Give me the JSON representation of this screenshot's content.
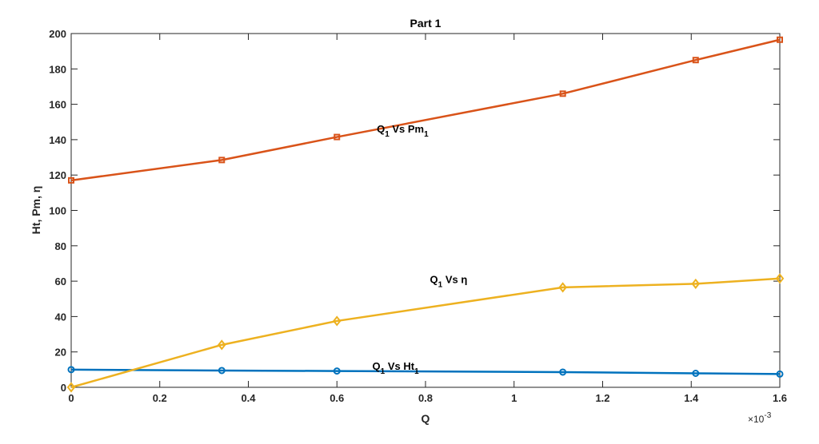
{
  "chart_data": {
    "type": "line",
    "title": "Part 1",
    "xlabel": "Q",
    "ylabel": "Ht, Pm, η",
    "x_exponent_label": "×10",
    "x_exponent_power": "-3",
    "xlim": [
      0,
      1.6
    ],
    "ylim": [
      0,
      200
    ],
    "x_ticks": [
      "0",
      "0.2",
      "0.4",
      "0.6",
      "0.8",
      "1",
      "1.2",
      "1.4",
      "1.6"
    ],
    "y_ticks": [
      "0",
      "20",
      "40",
      "60",
      "80",
      "100",
      "120",
      "140",
      "160",
      "180",
      "200"
    ],
    "x": [
      0,
      0.34,
      0.6,
      1.11,
      1.41,
      1.6
    ],
    "series": [
      {
        "key": "ht",
        "values": [
          10,
          9.5,
          9.2,
          8.6,
          7.9,
          7.5
        ],
        "color": "#0072BD",
        "marker": "circle",
        "annotation": {
          "main": "Q",
          "sub": "1",
          "rest": " Vs Ht",
          "sub2": "1",
          "anchor_x": 0.68,
          "anchor_y": 10
        }
      },
      {
        "key": "pm",
        "values": [
          117,
          128.5,
          141.5,
          166,
          185,
          196.5
        ],
        "color": "#D95319",
        "marker": "square",
        "annotation": {
          "main": "Q",
          "sub": "1",
          "rest": " Vs Pm",
          "sub2": "1",
          "anchor_x": 0.69,
          "anchor_y": 144
        }
      },
      {
        "key": "eta",
        "values": [
          0,
          24,
          37.5,
          56.5,
          58.5,
          61.5
        ],
        "color": "#EDB120",
        "marker": "diamond",
        "annotation": {
          "main": "Q",
          "sub": "1",
          "rest": " Vs η",
          "sub2": "",
          "anchor_x": 0.81,
          "anchor_y": 59
        }
      }
    ]
  }
}
